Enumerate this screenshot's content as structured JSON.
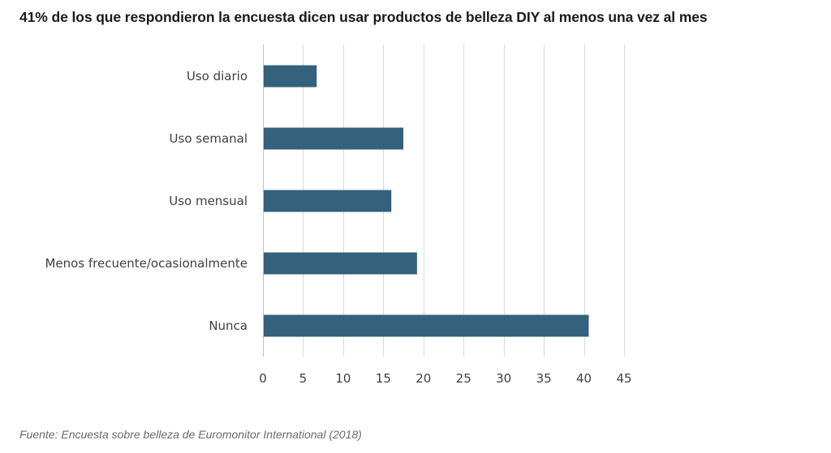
{
  "chart_data": {
    "type": "bar",
    "orientation": "horizontal",
    "title": "41% de los que respondieron la encuesta dicen usar productos de belleza DIY al menos una vez al mes",
    "source": "Fuente: Encuesta sobre belleza de Euromonitor International (2018)",
    "categories": [
      "Uso diario",
      "Uso semanal",
      "Uso mensual",
      "Menos frecuente/ocasionalmente",
      "Nunca"
    ],
    "values": [
      6.7,
      17.5,
      16.0,
      19.2,
      40.6
    ],
    "xlim": [
      0,
      45
    ],
    "xticks": [
      "0",
      "5",
      "10",
      "15",
      "20",
      "25",
      "30",
      "35",
      "40",
      "45"
    ],
    "grid": "vertical",
    "bar_color": "#34617b",
    "grid_color": "#d9d9d9",
    "legend": "none"
  }
}
